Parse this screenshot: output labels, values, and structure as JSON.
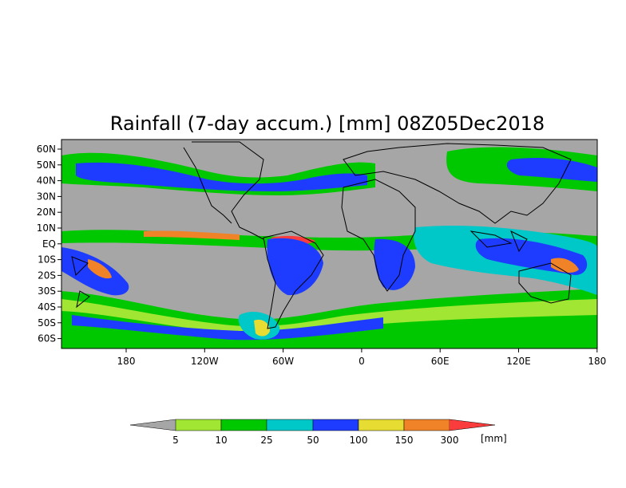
{
  "map": {
    "title": "Rainfall (7-day accum.) [mm] 08Z05Dec2018",
    "lat_labels": [
      "60N",
      "50N",
      "40N",
      "30N",
      "20N",
      "10N",
      "EQ",
      "10S",
      "20S",
      "30S",
      "40S",
      "50S",
      "60S"
    ],
    "lon_labels": [
      "180",
      "120W",
      "60W",
      "0",
      "60E",
      "120E",
      "180"
    ],
    "background_color": "#a6a6a6"
  },
  "legend": {
    "unit": "[mm]",
    "thresholds": [
      "5",
      "10",
      "25",
      "50",
      "100",
      "150",
      "300"
    ],
    "colors": [
      "#a6a6a6",
      "#a0e632",
      "#00c800",
      "#00c8c8",
      "#1e3cff",
      "#e6dc32",
      "#f08228",
      "#fa3c3c"
    ]
  },
  "rain_bands": {
    "itcz_color": "#f08228"
  }
}
